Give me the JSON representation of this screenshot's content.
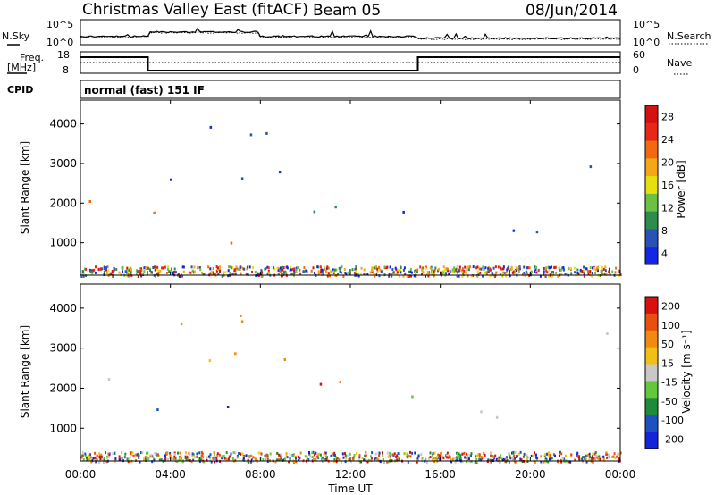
{
  "header": {
    "station": "Christmas Valley East (fitACF)",
    "beam": "Beam 05",
    "date": "08/Jun/2014"
  },
  "panels": {
    "noise": {
      "left_label": "N.Sky",
      "left_ticks": [
        "10^5",
        "10^0"
      ],
      "right_label": "N.Search",
      "right_ticks": [
        "10^5",
        "10^0"
      ]
    },
    "freq": {
      "left_label_1": "Freq.",
      "left_label_2": "[MHz]",
      "left_ticks": [
        "18",
        "8"
      ],
      "right_label": "Nave",
      "right_ticks": [
        "60",
        "0"
      ]
    },
    "cpid": {
      "label": "CPID",
      "text": "normal (fast) 151 IF"
    }
  },
  "colors": {
    "power_scale": [
      "#1226e6",
      "#2a52b4",
      "#2e8c4e",
      "#6cc044",
      "#e6e010",
      "#f2a818",
      "#f26a10",
      "#e62818",
      "#d41010"
    ],
    "velocity_scale": [
      "#1424d8",
      "#2050c0",
      "#208a3c",
      "#64c83c",
      "#c8c8c8",
      "#f0c018",
      "#f08a10",
      "#e85010",
      "#d81010"
    ],
    "axis": "#000000"
  },
  "chart_data": [
    {
      "type": "heatmap",
      "name": "Power",
      "ylabel": "Slant Range [km]",
      "yticks": [
        "4000",
        "3000",
        "2000",
        "1000"
      ],
      "ylim": [
        180,
        4600
      ],
      "colorbar_label": "Power [dB]",
      "colorbar_ticks": [
        "28",
        "24",
        "20",
        "16",
        "12",
        "8",
        "4"
      ],
      "color_range": [
        0,
        32
      ]
    },
    {
      "type": "heatmap",
      "name": "Velocity",
      "ylabel": "Slant Range [km]",
      "yticks": [
        "4000",
        "3000",
        "2000",
        "1000"
      ],
      "ylim": [
        180,
        4600
      ],
      "colorbar_label": "Velocity [m s⁻¹]",
      "colorbar_ticks": [
        "200",
        "100",
        "50",
        "15",
        "-15",
        "-50",
        "-100",
        "-200"
      ],
      "color_range": [
        -250,
        250
      ]
    }
  ],
  "xaxis": {
    "label": "Time UT",
    "ticks": [
      "00:00",
      "04:00",
      "08:00",
      "12:00",
      "16:00",
      "20:00",
      "00:00"
    ],
    "range_hours": [
      0,
      24
    ]
  },
  "series": {
    "freq_mhz": [
      {
        "from_h": 0,
        "to_h": 3,
        "value": 16
      },
      {
        "from_h": 3,
        "to_h": 15,
        "value": 8.5
      },
      {
        "from_h": 15,
        "to_h": 24,
        "value": 16
      }
    ],
    "nave_level": 30
  }
}
